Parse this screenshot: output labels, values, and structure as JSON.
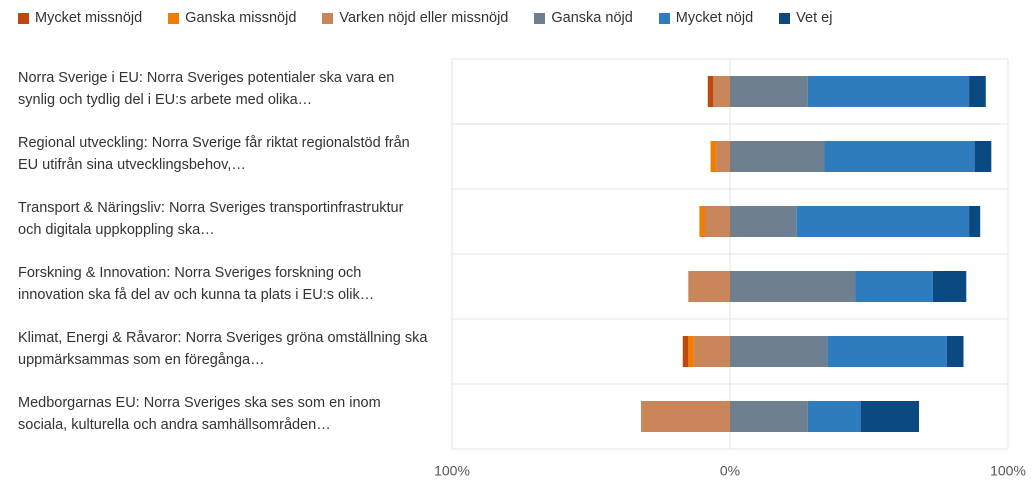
{
  "chart_data": {
    "type": "diverging_stacked_bar",
    "categories": [
      "Norra Sverige i EU: Norra Sveriges potentialer ska vara en synlig och tydlig del i EU:s arbete med olika…",
      "Regional utveckling: Norra Sverige får riktat regionalstöd från EU utifrån sina utvecklingsbehov,…",
      "Transport & Näringsliv: Norra Sveriges transportinfrastruktur och digitala uppkoppling ska…",
      "Forskning & Innovation: Norra Sveriges forskning och innovation ska få del av och kunna ta plats i EU:s olik…",
      "Klimat, Energi & Råvaror: Norra Sveriges gröna omställning ska uppmärksammas som en föregånga…",
      "Medborgarnas EU: Norra Sveriges ska ses som en inom sociala, kulturella och andra samhällsområden…"
    ],
    "series": [
      {
        "name": "Mycket missnöjd",
        "color": "#c0480f",
        "values": [
          -2,
          0,
          0,
          0,
          -2,
          0
        ]
      },
      {
        "name": "Ganska missnöjd",
        "color": "#f07c00",
        "values": [
          0,
          -2,
          -2,
          0,
          -2,
          0
        ]
      },
      {
        "name": "Varken nöjd eller missnöjd",
        "color": "#c8865a",
        "values": [
          -6,
          -5,
          -9,
          -15,
          -13,
          -32
        ]
      },
      {
        "name": "Ganska nöjd",
        "color": "#6e7f8f",
        "values": [
          28,
          34,
          24,
          45,
          35,
          28
        ]
      },
      {
        "name": "Mycket nöjd",
        "color": "#2e7bbd",
        "values": [
          58,
          54,
          62,
          28,
          43,
          19
        ]
      },
      {
        "name": "Vet ej",
        "color": "#0b4a80",
        "values": [
          6,
          6,
          4,
          12,
          6,
          21
        ]
      }
    ],
    "xlim": [
      -100,
      100
    ],
    "xticks": [
      {
        "value": -100,
        "label": "100%"
      },
      {
        "value": 0,
        "label": "0%"
      },
      {
        "value": 100,
        "label": "100%"
      }
    ],
    "grid": true,
    "legend": "top"
  }
}
